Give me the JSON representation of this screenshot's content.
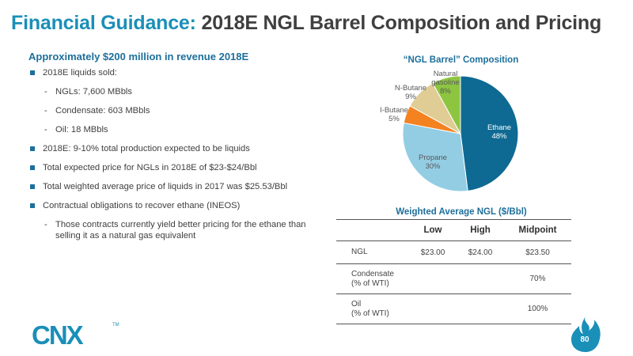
{
  "title": {
    "accent": "Financial Guidance:",
    "rest": "2018E NGL Barrel Composition and Pricing"
  },
  "subtitle": "Approximately $200 million in revenue 2018E",
  "bullets": {
    "b1": "2018E liquids sold:",
    "s1": "NGLs: 7,600 MBbls",
    "s2": "Condensate: 603 MBbls",
    "s3": "Oil: 18 MBbls",
    "b2": "2018E: 9-10% total production expected to be liquids",
    "b3": "Total expected price for NGLs in 2018E of $23-$24/Bbl",
    "b4": "Total weighted average price of liquids in 2017 was $25.53/Bbl",
    "b5": "Contractual obligations to recover ethane (INEOS)",
    "s4": "Those contracts currently yield better pricing for the ethane than selling it as a natural gas equivalent"
  },
  "chart_data": {
    "type": "pie",
    "title": "“NGL Barrel” Composition",
    "slices": [
      {
        "name": "Ethane",
        "value": 48,
        "label": "48%",
        "color": "#0e6a93"
      },
      {
        "name": "Propane",
        "value": 30,
        "label": "30%",
        "color": "#93cde4"
      },
      {
        "name": "I-Butane",
        "value": 5,
        "label": "5%",
        "color": "#f58220"
      },
      {
        "name": "N-Butane",
        "value": 9,
        "label": "9%",
        "color": "#e0cc95"
      },
      {
        "name": "Natural gasoline",
        "value": 8,
        "label": "8%",
        "color": "#8dc540"
      }
    ],
    "labels": {
      "ethane": {
        "name": "Ethane",
        "pct": "48%"
      },
      "propane": {
        "name": "Propane",
        "pct": "30%"
      },
      "ibutane": {
        "name": "I-Butane",
        "pct": "5%"
      },
      "nbutane": {
        "name": "N-Butane",
        "pct": "9%"
      },
      "natgas": {
        "name1": "Natural",
        "name2": "gasoline",
        "pct": "8%"
      }
    }
  },
  "table": {
    "title": "Weighted Average NGL ($/Bbl)",
    "headers": {
      "low": "Low",
      "high": "High",
      "mid": "Midpoint"
    },
    "rows": {
      "ngl": {
        "label": "NGL",
        "low": "$23.00",
        "high": "$24.00",
        "mid": "$23.50"
      },
      "condensate": {
        "label1": "Condensate",
        "label2": "(% of WTI)",
        "mid": "70%"
      },
      "oil": {
        "label1": "Oil",
        "label2": "(% of WTI)",
        "mid": "100%"
      }
    }
  },
  "logo": {
    "text": "CNX",
    "tm": "TM"
  },
  "page_number": "80",
  "colors": {
    "accent": "#1a8fb8",
    "heading": "#1d6f9b"
  }
}
